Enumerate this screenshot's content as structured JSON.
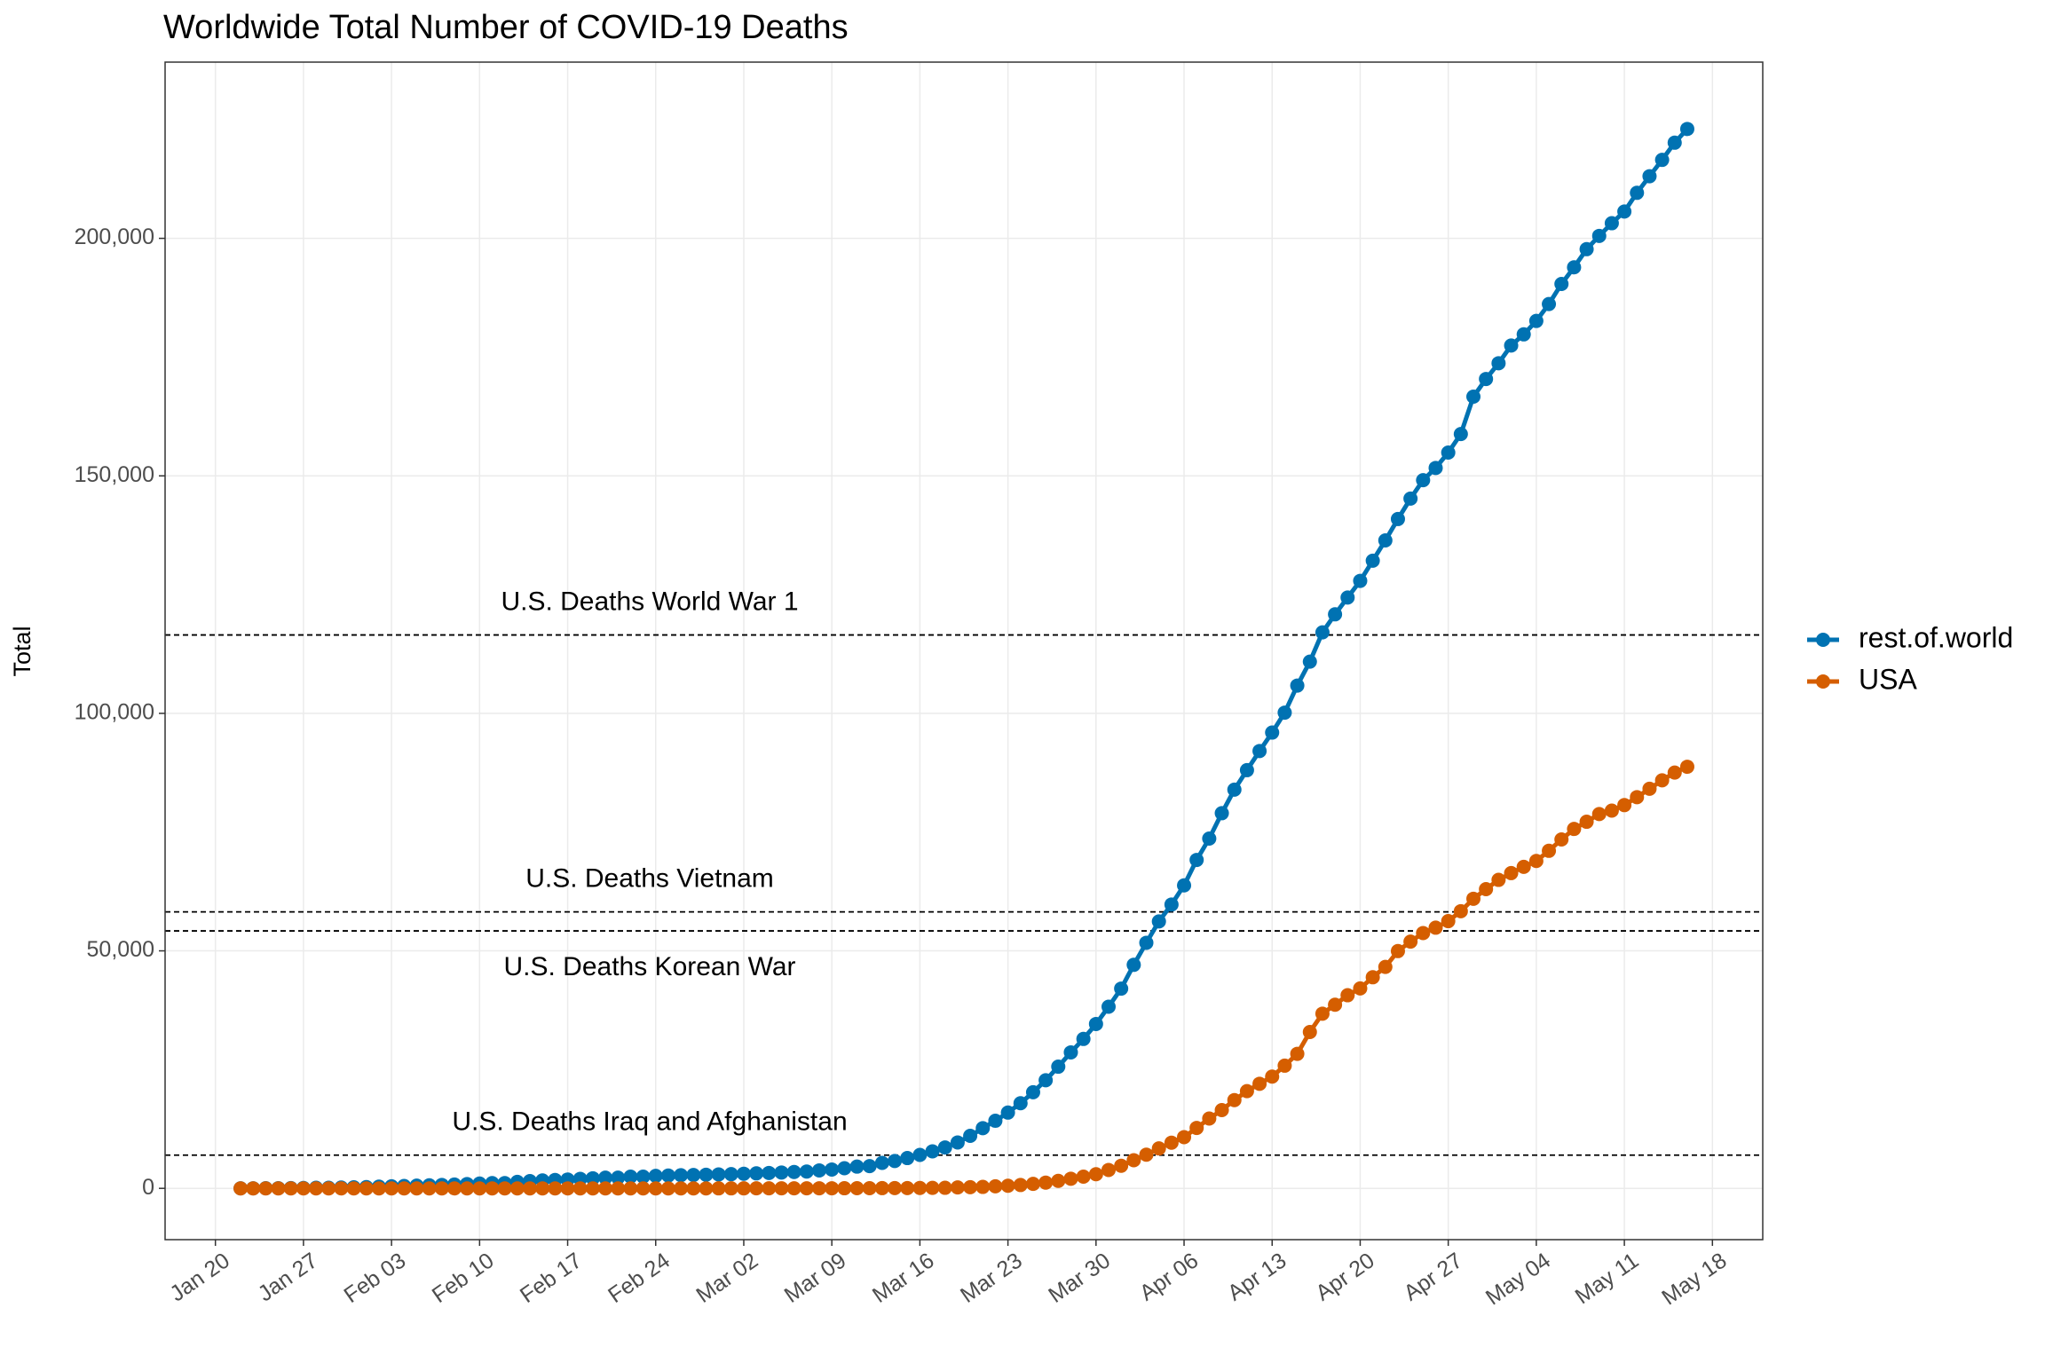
{
  "chart_data": {
    "type": "line",
    "title": "Worldwide Total Number of COVID-19 Deaths",
    "y_label": "Total",
    "x": [
      "Jan 22",
      "Jan 23",
      "Jan 24",
      "Jan 25",
      "Jan 26",
      "Jan 27",
      "Jan 28",
      "Jan 29",
      "Jan 30",
      "Jan 31",
      "Feb 01",
      "Feb 02",
      "Feb 03",
      "Feb 04",
      "Feb 05",
      "Feb 06",
      "Feb 07",
      "Feb 08",
      "Feb 09",
      "Feb 10",
      "Feb 11",
      "Feb 12",
      "Feb 13",
      "Feb 14",
      "Feb 15",
      "Feb 16",
      "Feb 17",
      "Feb 18",
      "Feb 19",
      "Feb 20",
      "Feb 21",
      "Feb 22",
      "Feb 23",
      "Feb 24",
      "Feb 25",
      "Feb 26",
      "Feb 27",
      "Feb 28",
      "Feb 29",
      "Mar 01",
      "Mar 02",
      "Mar 03",
      "Mar 04",
      "Mar 05",
      "Mar 06",
      "Mar 07",
      "Mar 08",
      "Mar 09",
      "Mar 10",
      "Mar 11",
      "Mar 12",
      "Mar 13",
      "Mar 14",
      "Mar 15",
      "Mar 16",
      "Mar 17",
      "Mar 18",
      "Mar 19",
      "Mar 20",
      "Mar 21",
      "Mar 22",
      "Mar 23",
      "Mar 24",
      "Mar 25",
      "Mar 26",
      "Mar 27",
      "Mar 28",
      "Mar 29",
      "Mar 30",
      "Mar 31",
      "Apr 01",
      "Apr 02",
      "Apr 03",
      "Apr 04",
      "Apr 05",
      "Apr 06",
      "Apr 07",
      "Apr 08",
      "Apr 09",
      "Apr 10",
      "Apr 11",
      "Apr 12",
      "Apr 13",
      "Apr 14",
      "Apr 15",
      "Apr 16",
      "Apr 17",
      "Apr 18",
      "Apr 19",
      "Apr 20",
      "Apr 21",
      "Apr 22",
      "Apr 23",
      "Apr 24",
      "Apr 25",
      "Apr 26",
      "Apr 27",
      "Apr 28",
      "Apr 29",
      "Apr 30",
      "May 01",
      "May 02",
      "May 03",
      "May 04",
      "May 05",
      "May 06",
      "May 07",
      "May 08",
      "May 09",
      "May 10",
      "May 11",
      "May 12",
      "May 13",
      "May 14",
      "May 15",
      "May 16"
    ],
    "series": [
      {
        "name": "rest.of.world",
        "color": "#0072B2",
        "values": [
          17,
          18,
          26,
          42,
          56,
          82,
          131,
          133,
          171,
          213,
          259,
          362,
          426,
          492,
          564,
          634,
          719,
          806,
          906,
          1013,
          1113,
          1118,
          1371,
          1523,
          1666,
          1770,
          1868,
          2007,
          2122,
          2247,
          2251,
          2458,
          2469,
          2629,
          2708,
          2770,
          2814,
          2872,
          2940,
          2995,
          3079,
          3153,
          3243,
          3336,
          3446,
          3541,
          3781,
          3966,
          4234,
          4579,
          4680,
          5357,
          5765,
          6377,
          7041,
          7797,
          8615,
          9667,
          11055,
          12666,
          14224,
          15953,
          17919,
          20239,
          22761,
          25617,
          28626,
          31458,
          34604,
          38234,
          42052,
          47057,
          51700,
          56199,
          59755,
          63782,
          69143,
          73643,
          78977,
          83939,
          88040,
          92071,
          95953,
          100153,
          105852,
          110884,
          117049,
          120846,
          124383,
          127892,
          132139,
          136405,
          140904,
          145210,
          149091,
          151663,
          154908,
          158798,
          166671,
          170392,
          173707,
          177439,
          179788,
          182615,
          186175,
          190400,
          193905,
          197718,
          200516,
          203183,
          205648,
          209586,
          213078,
          216520,
          220136,
          223027
        ]
      },
      {
        "name": "USA",
        "color": "#D55E00",
        "values": [
          0,
          0,
          0,
          0,
          0,
          0,
          0,
          0,
          0,
          0,
          0,
          0,
          0,
          0,
          0,
          0,
          0,
          0,
          0,
          0,
          0,
          0,
          0,
          0,
          0,
          0,
          0,
          0,
          0,
          0,
          0,
          0,
          0,
          0,
          0,
          0,
          0,
          0,
          1,
          1,
          6,
          7,
          11,
          12,
          14,
          17,
          21,
          22,
          28,
          36,
          40,
          47,
          54,
          63,
          85,
          108,
          118,
          200,
          244,
          307,
          427,
          552,
          706,
          942,
          1209,
          1581,
          2026,
          2467,
          2978,
          3873,
          4757,
          5926,
          7087,
          8407,
          9619,
          10783,
          12722,
          14695,
          16478,
          18586,
          20463,
          22020,
          23529,
          25831,
          28325,
          32916,
          36773,
          38664,
          40661,
          42094,
          44444,
          46622,
          49954,
          51949,
          53755,
          54881,
          56259,
          58355,
          60967,
          62996,
          64943,
          66369,
          67682,
          68922,
          71064,
          73455,
          75662,
          77180,
          78795,
          79526,
          80682,
          82356,
          84119,
          85898,
          87530,
          88754
        ]
      }
    ],
    "hlines": [
      {
        "label": "U.S. Deaths World War 1",
        "value": 116500
      },
      {
        "label": "U.S. Deaths Vietnam",
        "value": 58200
      },
      {
        "label": "U.S. Deaths Korean War",
        "value": 54200
      },
      {
        "label": "U.S. Deaths Iraq and Afghanistan",
        "value": 7000
      }
    ],
    "xlim": [
      "Jan 16",
      "May 22"
    ],
    "xticks": [
      "Jan 20",
      "Jan 27",
      "Feb 03",
      "Feb 10",
      "Feb 17",
      "Feb 24",
      "Mar 02",
      "Mar 09",
      "Mar 16",
      "Mar 23",
      "Mar 30",
      "Apr 06",
      "Apr 13",
      "Apr 20",
      "Apr 27",
      "May 04",
      "May 11",
      "May 18"
    ],
    "ylim": [
      -10800,
      237100
    ],
    "yticks": [
      0,
      {
        "value": 50000,
        "label": "50,000"
      },
      {
        "value": 100000,
        "label": "100,000"
      },
      {
        "value": 150000,
        "label": "150,000"
      },
      {
        "value": 200000,
        "label": "200,000"
      }
    ],
    "grid": true,
    "legend": "right"
  }
}
